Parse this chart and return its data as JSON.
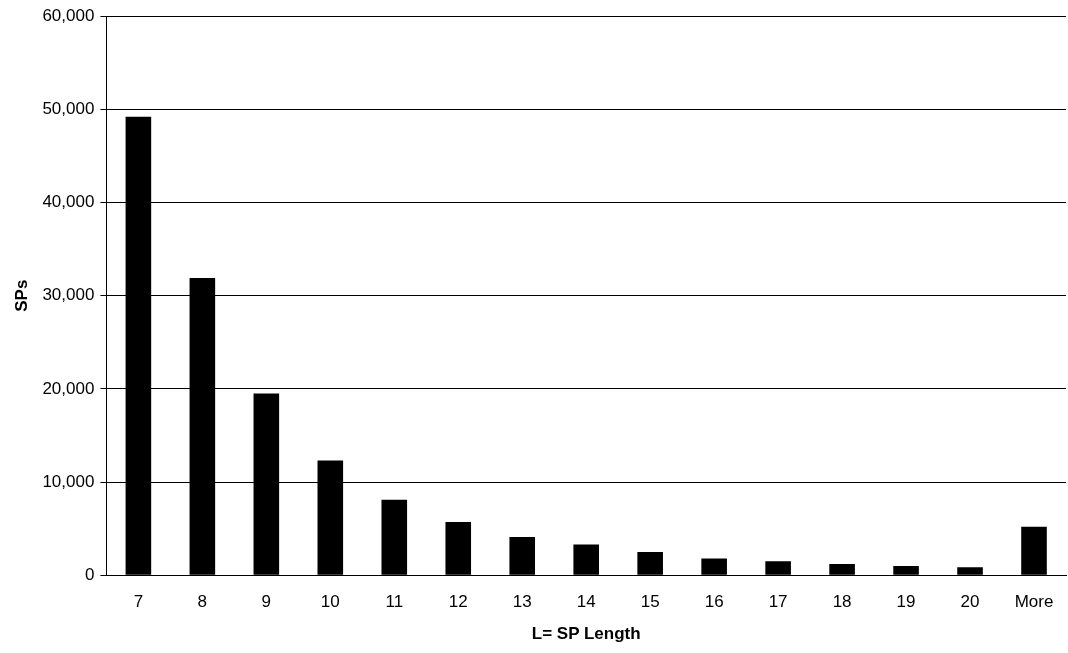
{
  "chart_data": {
    "type": "bar",
    "xlabel": "L= SP Length",
    "ylabel": "SPs",
    "categories": [
      "7",
      "8",
      "9",
      "10",
      "11",
      "12",
      "13",
      "14",
      "15",
      "16",
      "17",
      "18",
      "19",
      "20",
      "More"
    ],
    "values": [
      49200,
      31900,
      19500,
      12300,
      8100,
      5700,
      4100,
      3300,
      2500,
      1800,
      1500,
      1200,
      1000,
      850,
      5200
    ],
    "color": "#000000",
    "ylim": [
      0,
      60000
    ],
    "yticks": [
      {
        "value": 0,
        "label": "0"
      },
      {
        "value": 10000,
        "label": "10,000"
      },
      {
        "value": 20000,
        "label": "20,000"
      },
      {
        "value": 30000,
        "label": "30,000"
      },
      {
        "value": 40000,
        "label": "40,000"
      },
      {
        "value": 50000,
        "label": "50,000"
      },
      {
        "value": 60000,
        "label": "60,000"
      }
    ],
    "grid": "y",
    "legend": false
  }
}
